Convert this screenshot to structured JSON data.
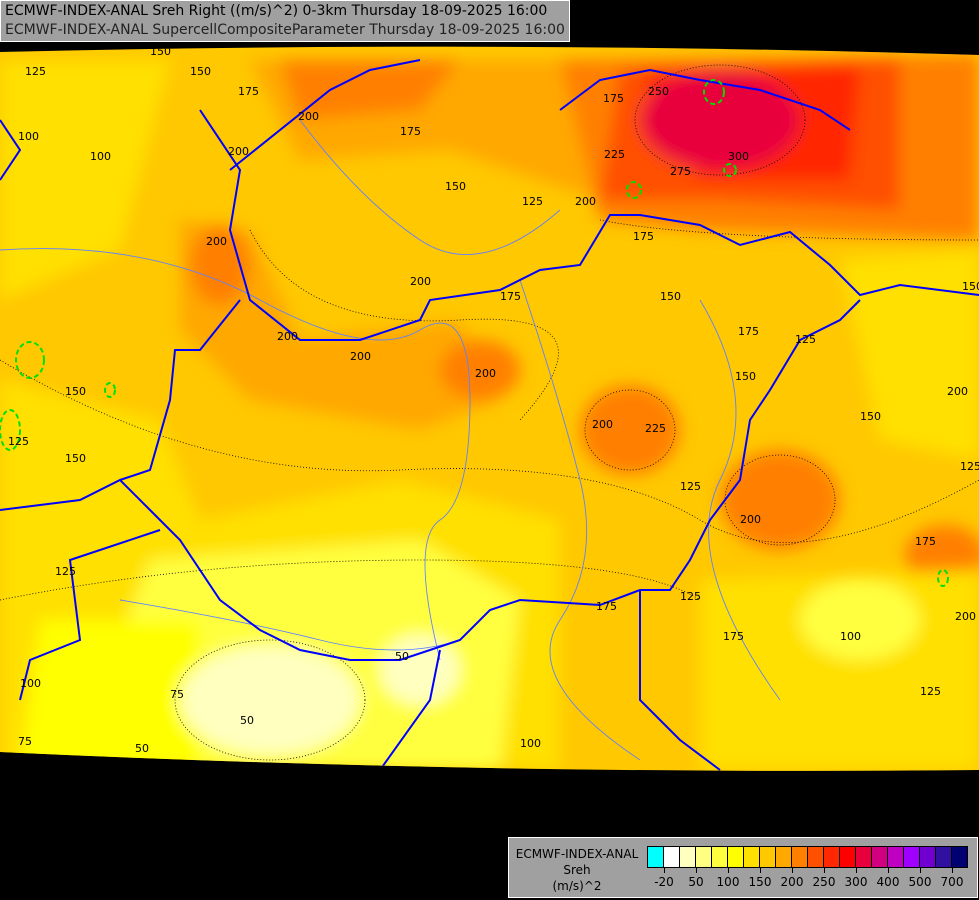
{
  "header": {
    "line1": "ECMWF-INDEX-ANAL Sreh Right ((m/s)^2) 0-3km Thursday 18-09-2025 16:00",
    "line2": "ECMWF-INDEX-ANAL SupercellCompositeParameter Thursday 18-09-2025 16:00"
  },
  "legend": {
    "model": "ECMWF-INDEX-ANAL",
    "variable": "Sreh",
    "unit": "(m/s)^2",
    "colors": [
      "#00ffff",
      "#ffffff",
      "#ffffc0",
      "#ffff80",
      "#ffff40",
      "#ffff00",
      "#ffe000",
      "#ffc800",
      "#ffa800",
      "#ff8000",
      "#ff5000",
      "#ff2800",
      "#ff0000",
      "#e8003c",
      "#d00080",
      "#c000c0",
      "#a000ff",
      "#7000d0",
      "#3010a0",
      "#000070"
    ],
    "tick_labels": [
      "-20",
      "50",
      "100",
      "150",
      "200",
      "250",
      "300",
      "400",
      "500",
      "700"
    ]
  },
  "map": {
    "contour_labels": [
      "125",
      "150",
      "175",
      "200",
      "200",
      "200",
      "175",
      "150",
      "125",
      "200",
      "225",
      "250",
      "275",
      "300",
      "175",
      "200",
      "200",
      "200",
      "175",
      "150",
      "200",
      "200",
      "150",
      "175",
      "150",
      "125",
      "100",
      "100",
      "150",
      "150",
      "125",
      "200",
      "225",
      "175",
      "125",
      "200",
      "175",
      "175",
      "125",
      "175",
      "100",
      "125",
      "100",
      "75",
      "50",
      "50",
      "50",
      "75",
      "100",
      "125",
      "150",
      "150",
      "125",
      "200"
    ],
    "scp_contour_color": "#00e000",
    "border_color": "#0000ff",
    "river_color": "#6080ff"
  }
}
